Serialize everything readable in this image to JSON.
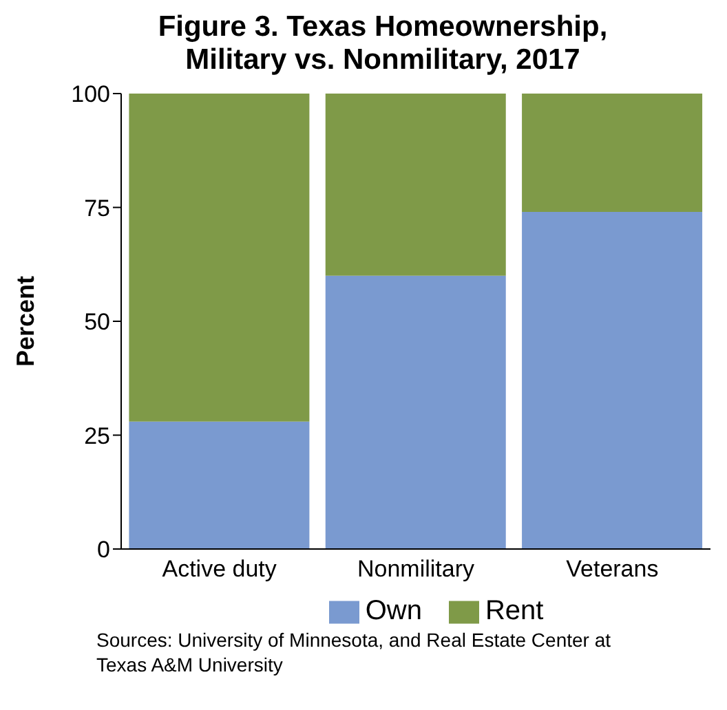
{
  "chart_data": {
    "type": "bar",
    "title": "Figure 3. Texas Homeownership, Military vs. Nonmilitary, 2017",
    "ylabel": "Percent",
    "categories": [
      "Active duty",
      "Nonmilitary",
      "Veterans"
    ],
    "stacked": true,
    "series": [
      {
        "name": "Own",
        "color": "#7a9ad0",
        "values": [
          28,
          60,
          74
        ]
      },
      {
        "name": "Rent",
        "color": "#7f9a48",
        "values": [
          72,
          40,
          26
        ]
      }
    ],
    "ylim": [
      0,
      100
    ],
    "yticks": [
      0,
      25,
      50,
      75,
      100
    ],
    "grid": false,
    "legend": "bottom",
    "annotations": [
      "Sources: University of Minnesota, and Real Estate Center at Texas A&M University"
    ]
  }
}
